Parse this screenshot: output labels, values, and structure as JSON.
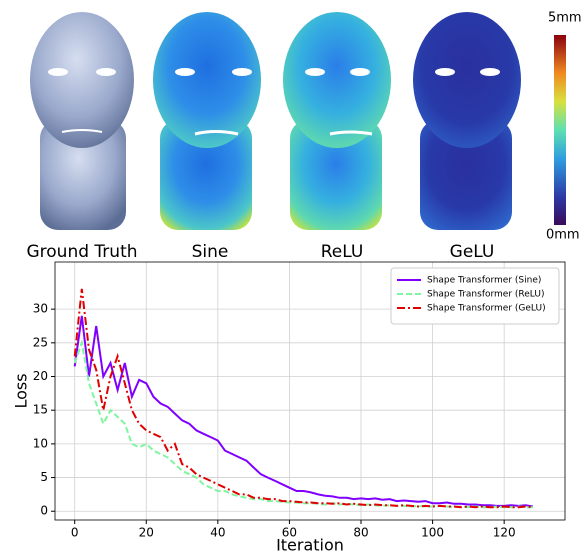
{
  "chart_data": {
    "type": "line",
    "x": [
      0,
      2,
      4,
      6,
      8,
      10,
      12,
      14,
      16,
      18,
      20,
      22,
      24,
      26,
      28,
      30,
      32,
      34,
      36,
      38,
      40,
      42,
      44,
      46,
      48,
      50,
      52,
      54,
      56,
      58,
      60,
      62,
      64,
      66,
      68,
      70,
      72,
      74,
      76,
      78,
      80,
      82,
      84,
      86,
      88,
      90,
      92,
      94,
      96,
      98,
      100,
      102,
      104,
      106,
      108,
      110,
      112,
      114,
      116,
      118,
      120,
      122,
      124,
      126,
      128
    ],
    "series": [
      {
        "name": "Shape Transformer (Sine)",
        "color": "#7f00ff",
        "dash": "solid",
        "values": [
          21.5,
          29,
          20,
          27.5,
          20,
          22,
          18,
          22,
          17,
          19.5,
          19,
          17,
          16,
          15.5,
          14.5,
          13.5,
          13,
          12,
          11.5,
          11,
          10.5,
          9,
          8.5,
          8,
          7.5,
          6.5,
          5.5,
          5,
          4.5,
          4,
          3.5,
          3,
          3,
          2.8,
          2.5,
          2.3,
          2.2,
          2,
          2,
          1.8,
          1.9,
          1.8,
          1.9,
          1.7,
          1.8,
          1.5,
          1.6,
          1.5,
          1.4,
          1.5,
          1.2,
          1.2,
          1.3,
          1.1,
          1.1,
          1,
          1,
          0.9,
          0.9,
          0.8,
          0.8,
          0.9,
          0.8,
          0.9,
          0.7
        ]
      },
      {
        "name": "Shape Transformer (ReLU)",
        "color": "#7ff5a0",
        "dash": "dashed",
        "values": [
          22,
          25,
          19,
          16,
          13,
          15,
          14,
          13,
          10,
          9.5,
          10,
          9,
          8.5,
          8,
          7,
          6,
          5.5,
          5,
          4,
          3.5,
          3,
          3,
          2.5,
          2.2,
          2,
          1.8,
          1.8,
          1.5,
          1.5,
          1.4,
          1.3,
          1.3,
          1.2,
          1.2,
          1.1,
          1,
          1.2,
          1,
          1.1,
          1,
          0.9,
          1,
          0.9,
          0.8,
          0.9,
          0.8,
          0.8,
          0.7,
          0.8,
          0.7,
          0.7,
          0.8,
          0.7,
          0.6,
          0.7,
          0.6,
          0.7,
          0.6,
          0.6,
          0.7,
          0.6,
          0.6,
          0.7,
          0.6,
          0.6
        ]
      },
      {
        "name": "Shape Transformer (GeLU)",
        "color": "#e00000",
        "dash": "dashdot",
        "values": [
          23,
          33,
          24,
          21,
          15,
          20,
          23,
          19,
          15,
          13,
          12,
          11.5,
          11,
          9,
          10,
          7,
          6.5,
          5.5,
          5,
          4.5,
          4,
          3.5,
          3,
          2.5,
          2.5,
          2,
          2,
          1.8,
          1.8,
          1.5,
          1.5,
          1.4,
          1.3,
          1.3,
          1.2,
          1.2,
          1.1,
          1.2,
          1,
          1.1,
          1,
          0.9,
          1,
          0.9,
          0.9,
          0.8,
          0.9,
          0.8,
          0.7,
          0.8,
          0.7,
          0.8,
          0.7,
          0.7,
          0.6,
          0.7,
          0.6,
          0.7,
          0.6,
          0.6,
          0.7,
          0.6,
          0.6,
          0.7,
          0.6
        ]
      }
    ],
    "xlabel": "Iteration",
    "ylabel": "Loss",
    "xlim": [
      -5.5,
      137
    ],
    "ylim": [
      -1.3,
      37
    ],
    "xticks": [
      0,
      20,
      40,
      60,
      80,
      100,
      120
    ],
    "yticks": [
      0,
      5,
      10,
      15,
      20,
      25,
      30
    ],
    "grid": true,
    "legend": "upper right"
  },
  "renders": {
    "labels": [
      "Ground Truth",
      "Sine",
      "ReLU",
      "GeLU"
    ],
    "colorbar": {
      "max": "5mm",
      "min": "0mm"
    }
  }
}
